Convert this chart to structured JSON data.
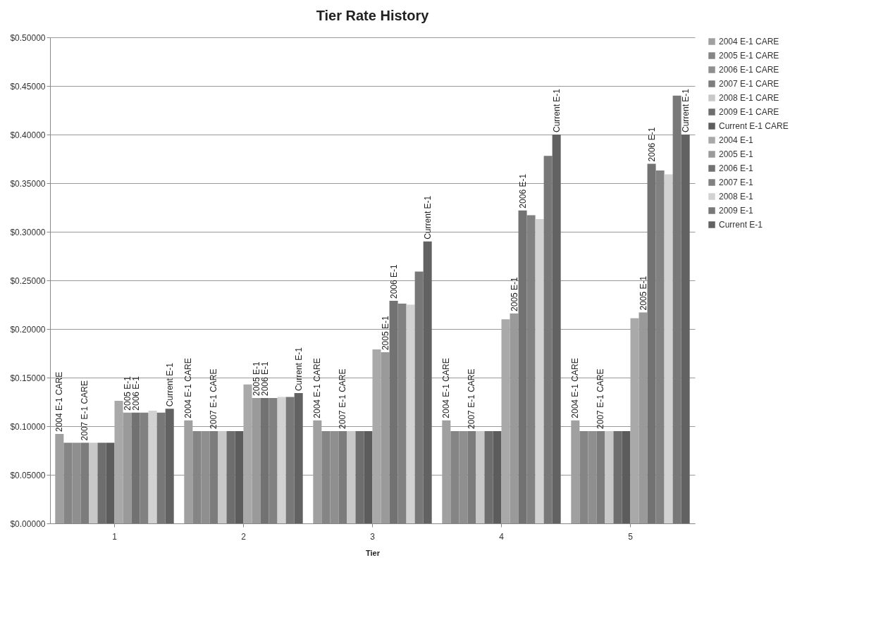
{
  "chart_data": {
    "type": "bar",
    "title": "Tier Rate History",
    "xlabel": "Tier",
    "categories": [
      "1",
      "2",
      "3",
      "4",
      "5"
    ],
    "ylim": [
      0,
      0.5
    ],
    "yticks": [
      {
        "value": 0,
        "label": "$0.00000"
      },
      {
        "value": 0.05,
        "label": "$0.05000"
      },
      {
        "value": 0.1,
        "label": "$0.10000"
      },
      {
        "value": 0.15,
        "label": "$0.15000"
      },
      {
        "value": 0.2,
        "label": "$0.20000"
      },
      {
        "value": 0.25,
        "label": "$0.25000"
      },
      {
        "value": 0.3,
        "label": "$0.30000"
      },
      {
        "value": 0.35,
        "label": "$0.35000"
      },
      {
        "value": 0.4,
        "label": "$0.40000"
      },
      {
        "value": 0.45,
        "label": "$0.45000"
      },
      {
        "value": 0.5,
        "label": "$0.50000"
      }
    ],
    "grid": "y",
    "legend": "right",
    "series": [
      {
        "name": "2004 E-1 CARE",
        "color": "#a0a0a0",
        "values": [
          0.092,
          0.106,
          0.106,
          0.106,
          0.106
        ]
      },
      {
        "name": "2005 E-1 CARE",
        "color": "#858585",
        "values": [
          0.083,
          0.095,
          0.095,
          0.095,
          0.095
        ]
      },
      {
        "name": "2006 E-1 CARE",
        "color": "#8f8f8f",
        "values": [
          0.083,
          0.095,
          0.095,
          0.095,
          0.095
        ]
      },
      {
        "name": "2007 E-1 CARE",
        "color": "#7c7c7c",
        "values": [
          0.083,
          0.095,
          0.095,
          0.095,
          0.095
        ]
      },
      {
        "name": "2008 E-1 CARE",
        "color": "#c8c8c8",
        "values": [
          0.083,
          0.095,
          0.095,
          0.095,
          0.095
        ]
      },
      {
        "name": "2009 E-1 CARE",
        "color": "#6e6e6e",
        "values": [
          0.083,
          0.095,
          0.095,
          0.095,
          0.095
        ]
      },
      {
        "name": "Current E-1 CARE",
        "color": "#5c5c5c",
        "values": [
          0.083,
          0.095,
          0.095,
          0.095,
          0.095
        ]
      },
      {
        "name": "2004 E-1",
        "color": "#a9a9a9",
        "values": [
          0.126,
          0.143,
          0.179,
          0.21,
          0.211
        ]
      },
      {
        "name": "2005 E-1",
        "color": "#9a9a9a",
        "values": [
          0.114,
          0.129,
          0.176,
          0.216,
          0.217
        ]
      },
      {
        "name": "2006 E-1",
        "color": "#727272",
        "values": [
          0.114,
          0.129,
          0.229,
          0.322,
          0.37
        ]
      },
      {
        "name": "2007 E-1",
        "color": "#818181",
        "values": [
          0.114,
          0.129,
          0.226,
          0.317,
          0.363
        ]
      },
      {
        "name": "2008 E-1",
        "color": "#d2d2d2",
        "values": [
          0.116,
          0.13,
          0.225,
          0.313,
          0.359
        ]
      },
      {
        "name": "2009 E-1",
        "color": "#787878",
        "values": [
          0.114,
          0.13,
          0.259,
          0.378,
          0.44
        ]
      },
      {
        "name": "Current E-1",
        "color": "#626262",
        "values": [
          0.118,
          0.134,
          0.29,
          0.4,
          0.4
        ]
      }
    ],
    "annotations": [
      "2004 E-1 CARE",
      "2007 E-1 CARE",
      "2005 E-1",
      "2006 E-1",
      "Current E-1",
      "2004 E-1 CARE",
      "2007 E-1 CARE",
      "2005 E-1",
      "2006 E-1",
      "Current E-1",
      "2004 E-1 CARE",
      "2007 E-1 CARE",
      "2005 E-1",
      "2006 E-1",
      "Current E-1",
      "2004 E-1 CARE",
      "2007 E-1 CARE",
      "2005 E-1",
      "2006 E-1",
      "Current E-1",
      "2004 E-1 CARE",
      "2007 E-1 CARE",
      "2005 E-1",
      "2006 E-1",
      "Current E-1"
    ]
  }
}
